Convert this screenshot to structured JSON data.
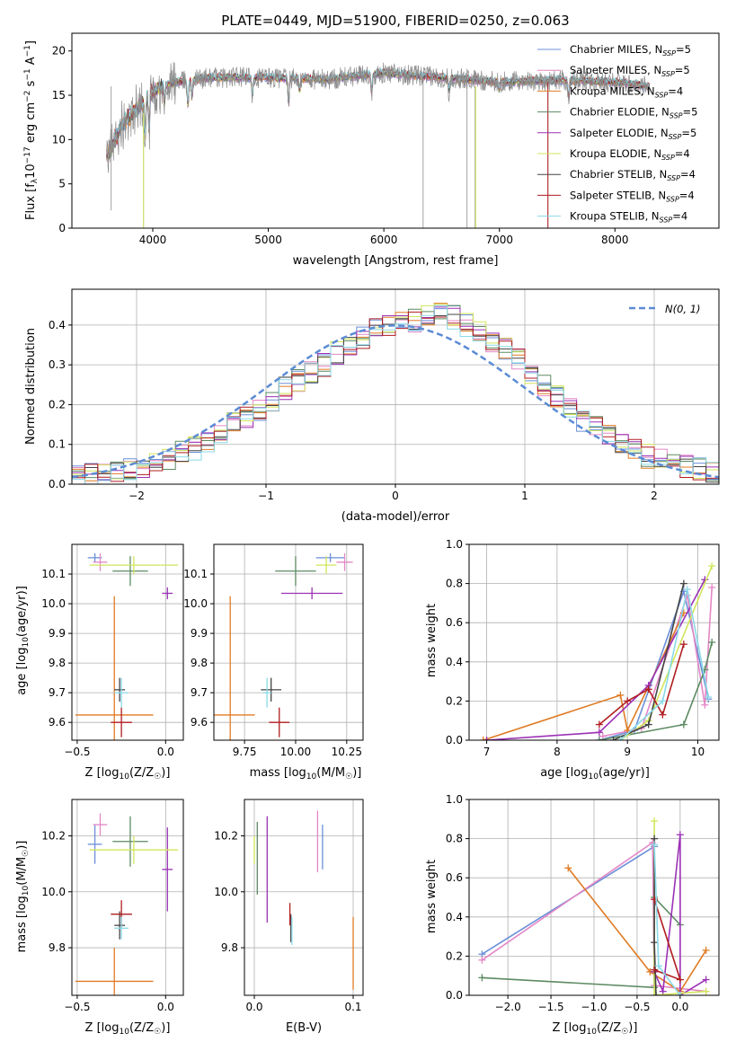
{
  "chart_data": [
    {
      "type": "line",
      "title": "PLATE=0449, MJD=51900, FIBERID=0250, z=0.063",
      "xlabel": "wavelength [Angstrom, rest frame]",
      "ylabel_parts": [
        "Flux [f",
        "λ",
        "10",
        "−17",
        " erg cm",
        "−2",
        " s",
        "−1",
        " A",
        "−1",
        "]"
      ],
      "xlim": [
        3300,
        8900
      ],
      "ylim": [
        0,
        22
      ],
      "xticks": [
        "4000",
        "5000",
        "6000",
        "7000",
        "8000"
      ],
      "yticks": [
        "0",
        "5",
        "10",
        "15",
        "20"
      ],
      "x_range": [
        3600,
        8300
      ],
      "legend_position": "upper right",
      "series": [
        {
          "name": "Chabrier MILES",
          "nssp": "5",
          "color": "#6a8fd8"
        },
        {
          "name": "Salpeter MILES",
          "nssp": "5",
          "color": "#e387c6"
        },
        {
          "name": "Kroupa MILES",
          "nssp": "4",
          "color": "#e07b24"
        },
        {
          "name": "Chabrier ELODIE",
          "nssp": "5",
          "color": "#5c8a62"
        },
        {
          "name": "Salpeter ELODIE",
          "nssp": "5",
          "color": "#9b31b5"
        },
        {
          "name": "Kroupa ELODIE",
          "nssp": "4",
          "color": "#d2e65a"
        },
        {
          "name": "Chabrier STELIB",
          "nssp": "4",
          "color": "#444444"
        },
        {
          "name": "Salpeter STELIB",
          "nssp": "4",
          "color": "#b01c20"
        },
        {
          "name": "Kroupa STELIB",
          "nssp": "4",
          "color": "#8ad9e8"
        }
      ],
      "data_color": "#8c8c8c",
      "continuum": [
        [
          3600,
          8
        ],
        [
          3750,
          12
        ],
        [
          3900,
          14
        ],
        [
          4000,
          15.5
        ],
        [
          4200,
          16.5
        ],
        [
          4500,
          17
        ],
        [
          5000,
          17
        ],
        [
          5500,
          16.8
        ],
        [
          6000,
          17.5
        ],
        [
          6500,
          17
        ],
        [
          7000,
          16.5
        ],
        [
          7500,
          16.7
        ],
        [
          8000,
          16.5
        ],
        [
          8300,
          16
        ]
      ],
      "absorption_lines": [
        [
          3934,
          4
        ],
        [
          3968,
          4
        ],
        [
          4102,
          2
        ],
        [
          4304,
          3
        ],
        [
          4340,
          2
        ],
        [
          4861,
          2
        ],
        [
          5175,
          3
        ],
        [
          5270,
          1.5
        ],
        [
          5893,
          2
        ],
        [
          6563,
          1.5
        ],
        [
          7000,
          1
        ],
        [
          7600,
          2
        ]
      ],
      "telluric_spikes": [
        [
          3640,
          2,
          16
        ],
        [
          3920,
          0,
          14
        ],
        [
          6340,
          0,
          17
        ],
        [
          6720,
          0,
          18
        ],
        [
          6790,
          0,
          16
        ],
        [
          7420,
          0,
          17
        ]
      ]
    },
    {
      "type": "histogram",
      "xlabel": "(data-model)/error",
      "ylabel": "Normed distribution",
      "xlim": [
        -2.5,
        2.5
      ],
      "ylim": [
        0,
        0.49
      ],
      "xticks": [
        "−2",
        "−1",
        "0",
        "1",
        "2"
      ],
      "yticks": [
        "0.0",
        "0.1",
        "0.2",
        "0.3",
        "0.4"
      ],
      "gaussian_label": "N(0, 1)",
      "gaussian_color": "#5b8bd4",
      "bin_edges": [
        -2.5,
        -2.4,
        -2.3,
        -2.2,
        -2.1,
        -2.0,
        -1.9,
        -1.8,
        -1.7,
        -1.6,
        -1.5,
        -1.4,
        -1.3,
        -1.2,
        -1.1,
        -1.0,
        -0.9,
        -0.8,
        -0.7,
        -0.6,
        -0.5,
        -0.4,
        -0.3,
        -0.2,
        -0.1,
        0.0,
        0.1,
        0.2,
        0.3,
        0.4,
        0.5,
        0.6,
        0.7,
        0.8,
        0.9,
        1.0,
        1.1,
        1.2,
        1.3,
        1.4,
        1.5,
        1.6,
        1.7,
        1.8,
        1.9,
        2.0,
        2.1,
        2.2,
        2.3,
        2.4,
        2.5
      ],
      "base_counts": [
        0.02,
        0.025,
        0.03,
        0.035,
        0.04,
        0.045,
        0.055,
        0.065,
        0.08,
        0.09,
        0.11,
        0.13,
        0.15,
        0.17,
        0.19,
        0.21,
        0.24,
        0.26,
        0.28,
        0.3,
        0.33,
        0.35,
        0.37,
        0.39,
        0.4,
        0.41,
        0.41,
        0.42,
        0.43,
        0.42,
        0.4,
        0.38,
        0.36,
        0.34,
        0.31,
        0.28,
        0.25,
        0.22,
        0.19,
        0.16,
        0.14,
        0.12,
        0.1,
        0.085,
        0.07,
        0.06,
        0.05,
        0.045,
        0.04,
        0.035
      ]
    },
    {
      "type": "errorbar",
      "xlabel_parts": [
        "Z [log",
        "10",
        "(Z/Z",
        "☉",
        ")]"
      ],
      "ylabel_parts": [
        "age  [log",
        "10",
        "(age/yr)]"
      ],
      "xlim": [
        -0.53,
        0.1
      ],
      "ylim": [
        9.54,
        10.2
      ],
      "xticks": [
        "−0.5",
        "0.0"
      ],
      "yticks": [
        "9.6",
        "9.7",
        "9.8",
        "9.9",
        "10.0",
        "10.1"
      ],
      "points": [
        {
          "x": -0.4,
          "xerr": 0.04,
          "y": 10.155,
          "yerr": 0.015,
          "color": "#6a8fd8"
        },
        {
          "x": -0.37,
          "xerr": 0.04,
          "y": 10.14,
          "yerr": 0.03,
          "color": "#e387c6"
        },
        {
          "x": -0.29,
          "xerr": 0.22,
          "y": 9.625,
          "yerr": 0.4,
          "color": "#e07b24"
        },
        {
          "x": -0.2,
          "xerr": 0.1,
          "y": 10.11,
          "yerr": 0.05,
          "color": "#5c8a62"
        },
        {
          "x": 0.01,
          "xerr": 0.03,
          "y": 10.035,
          "yerr": 0.02,
          "color": "#9b31b5"
        },
        {
          "x": -0.18,
          "xerr": 0.25,
          "y": 10.13,
          "yerr": 0.03,
          "color": "#d2e65a"
        },
        {
          "x": -0.26,
          "xerr": 0.03,
          "y": 9.71,
          "yerr": 0.04,
          "color": "#444444"
        },
        {
          "x": -0.25,
          "xerr": 0.06,
          "y": 9.6,
          "yerr": 0.05,
          "color": "#b01c20"
        },
        {
          "x": -0.25,
          "xerr": 0.04,
          "y": 9.7,
          "yerr": 0.05,
          "color": "#8ad9e8"
        }
      ]
    },
    {
      "type": "errorbar",
      "xlabel_parts": [
        "mass [log",
        "10",
        "(M/M",
        "☉",
        ")]"
      ],
      "xlim": [
        9.6,
        10.33
      ],
      "ylim": [
        9.54,
        10.2
      ],
      "xticks": [
        "9.75",
        "10.00",
        "10.25"
      ],
      "yticks": [
        "9.6",
        "9.7",
        "9.8",
        "9.9",
        "10.0",
        "10.1"
      ],
      "points": [
        {
          "x": 10.17,
          "xerr": 0.07,
          "y": 10.155,
          "yerr": 0.015,
          "color": "#6a8fd8"
        },
        {
          "x": 10.24,
          "xerr": 0.04,
          "y": 10.14,
          "yerr": 0.03,
          "color": "#e387c6"
        },
        {
          "x": 9.68,
          "xerr": 0.12,
          "y": 9.625,
          "yerr": 0.4,
          "color": "#e07b24"
        },
        {
          "x": 10.0,
          "xerr": 0.1,
          "y": 10.11,
          "yerr": 0.05,
          "color": "#5c8a62"
        },
        {
          "x": 10.08,
          "xerr": 0.15,
          "y": 10.035,
          "yerr": 0.02,
          "color": "#9b31b5"
        },
        {
          "x": 10.15,
          "xerr": 0.05,
          "y": 10.13,
          "yerr": 0.03,
          "color": "#d2e65a"
        },
        {
          "x": 9.88,
          "xerr": 0.05,
          "y": 9.71,
          "yerr": 0.04,
          "color": "#444444"
        },
        {
          "x": 9.92,
          "xerr": 0.05,
          "y": 9.6,
          "yerr": 0.05,
          "color": "#b01c20"
        },
        {
          "x": 9.86,
          "xerr": 0.02,
          "y": 9.7,
          "yerr": 0.05,
          "color": "#8ad9e8"
        }
      ]
    },
    {
      "type": "line",
      "xlabel_parts": [
        "age  [log",
        "10",
        "(age/yr)]"
      ],
      "ylabel": "mass weight",
      "xlim": [
        6.75,
        10.3
      ],
      "ylim": [
        0,
        1
      ],
      "xticks": [
        "7",
        "8",
        "9",
        "10"
      ],
      "yticks": [
        "0.0",
        "0.2",
        "0.4",
        "0.6",
        "0.8",
        "1.0"
      ],
      "series": [
        {
          "color": "#6a8fd8",
          "points": [
            [
              8.6,
              0.0
            ],
            [
              9.1,
              0.05
            ],
            [
              9.8,
              0.76
            ],
            [
              10.15,
              0.21
            ]
          ]
        },
        {
          "color": "#e387c6",
          "points": [
            [
              8.65,
              0.02
            ],
            [
              9.2,
              0.06
            ],
            [
              9.85,
              0.74
            ],
            [
              10.1,
              0.18
            ],
            [
              10.2,
              0.78
            ]
          ]
        },
        {
          "color": "#e07b24",
          "points": [
            [
              6.95,
              0.0
            ],
            [
              8.9,
              0.23
            ],
            [
              9.0,
              0.05
            ],
            [
              9.8,
              0.65
            ]
          ]
        },
        {
          "color": "#5c8a62",
          "points": [
            [
              8.6,
              0.0
            ],
            [
              9.8,
              0.08
            ],
            [
              10.1,
              0.36
            ],
            [
              10.2,
              0.5
            ]
          ]
        },
        {
          "color": "#9b31b5",
          "points": [
            [
              7.0,
              0.0
            ],
            [
              8.6,
              0.04
            ],
            [
              9.3,
              0.28
            ],
            [
              10.1,
              0.82
            ]
          ]
        },
        {
          "color": "#d2e65a",
          "points": [
            [
              8.9,
              0.0
            ],
            [
              9.3,
              0.1
            ],
            [
              10.2,
              0.89
            ]
          ]
        },
        {
          "color": "#444444",
          "points": [
            [
              8.8,
              0.0
            ],
            [
              9.3,
              0.08
            ],
            [
              9.8,
              0.8
            ]
          ]
        },
        {
          "color": "#b01c20",
          "points": [
            [
              8.6,
              0.08
            ],
            [
              9.0,
              0.2
            ],
            [
              9.3,
              0.26
            ],
            [
              9.5,
              0.13
            ],
            [
              9.8,
              0.49
            ]
          ]
        },
        {
          "color": "#8ad9e8",
          "points": [
            [
              8.9,
              0.0
            ],
            [
              9.5,
              0.2
            ],
            [
              9.85,
              0.77
            ],
            [
              10.15,
              0.22
            ]
          ]
        }
      ]
    },
    {
      "type": "errorbar",
      "xlabel_parts": [
        "Z [log",
        "10",
        "(Z/Z",
        "☉",
        ")]"
      ],
      "ylabel_parts": [
        "mass [log",
        "10",
        "(M/M",
        "☉",
        ")]"
      ],
      "xlim": [
        -0.53,
        0.1
      ],
      "ylim": [
        9.63,
        10.33
      ],
      "xticks": [
        "−0.5",
        "0.0"
      ],
      "yticks": [
        "9.8",
        "10.0",
        "10.2"
      ],
      "points": [
        {
          "x": -0.4,
          "xerr": 0.04,
          "y": 10.17,
          "yerr": 0.07,
          "color": "#6a8fd8"
        },
        {
          "x": -0.37,
          "xerr": 0.04,
          "y": 10.24,
          "yerr": 0.04,
          "color": "#e387c6"
        },
        {
          "x": -0.29,
          "xerr": 0.22,
          "y": 9.68,
          "yerr": 0.12,
          "color": "#e07b24"
        },
        {
          "x": -0.2,
          "xerr": 0.1,
          "y": 10.18,
          "yerr": 0.09,
          "color": "#5c8a62"
        },
        {
          "x": 0.01,
          "xerr": 0.03,
          "y": 10.08,
          "yerr": 0.15,
          "color": "#9b31b5"
        },
        {
          "x": -0.18,
          "xerr": 0.25,
          "y": 10.15,
          "yerr": 0.05,
          "color": "#d2e65a"
        },
        {
          "x": -0.26,
          "xerr": 0.03,
          "y": 9.88,
          "yerr": 0.05,
          "color": "#444444"
        },
        {
          "x": -0.25,
          "xerr": 0.06,
          "y": 9.92,
          "yerr": 0.05,
          "color": "#b01c20"
        },
        {
          "x": -0.25,
          "xerr": 0.04,
          "y": 9.87,
          "yerr": 0.04,
          "color": "#8ad9e8"
        }
      ]
    },
    {
      "type": "errorbar",
      "xlabel": "E(B-V)",
      "xlim": [
        -0.01,
        0.11
      ],
      "ylim": [
        9.63,
        10.33
      ],
      "xticks": [
        "0.0",
        "0.1"
      ],
      "yticks": [
        "9.8",
        "10.0",
        "10.2"
      ],
      "points": [
        {
          "x": 0.069,
          "y": 10.16,
          "yerr": 0.08,
          "color": "#6a8fd8"
        },
        {
          "x": 0.064,
          "y": 10.18,
          "yerr": 0.11,
          "color": "#e387c6"
        },
        {
          "x": 0.1,
          "y": 9.78,
          "yerr": 0.13,
          "color": "#e07b24"
        },
        {
          "x": 0.003,
          "y": 10.12,
          "yerr": 0.13,
          "color": "#5c8a62"
        },
        {
          "x": 0.013,
          "y": 10.08,
          "yerr": 0.19,
          "color": "#9b31b5"
        },
        {
          "x": 0.0,
          "y": 10.15,
          "yerr": 0.05,
          "color": "#d2e65a"
        },
        {
          "x": 0.037,
          "y": 9.87,
          "yerr": 0.05,
          "color": "#444444"
        },
        {
          "x": 0.036,
          "y": 9.92,
          "yerr": 0.04,
          "color": "#b01c20"
        },
        {
          "x": 0.038,
          "y": 9.86,
          "yerr": 0.05,
          "color": "#8ad9e8"
        }
      ]
    },
    {
      "type": "line",
      "xlabel_parts": [
        "Z [log",
        "10",
        "(Z/Z",
        "☉",
        ")]"
      ],
      "ylabel": "mass weight",
      "xlim": [
        -2.45,
        0.45
      ],
      "ylim": [
        0,
        1
      ],
      "xticks": [
        "−2.0",
        "−1.5",
        "−1.0",
        "−0.5",
        "0.0"
      ],
      "yticks": [
        "0.0",
        "0.2",
        "0.4",
        "0.6",
        "0.8",
        "1.0"
      ],
      "series": [
        {
          "color": "#6a8fd8",
          "points": [
            [
              -2.3,
              0.21
            ],
            [
              -0.3,
              0.76
            ]
          ]
        },
        {
          "color": "#e387c6",
          "points": [
            [
              -2.3,
              0.18
            ],
            [
              -0.32,
              0.78
            ],
            [
              -0.3,
              0.05
            ],
            [
              0.3,
              0.02
            ]
          ]
        },
        {
          "color": "#e07b24",
          "points": [
            [
              -1.3,
              0.65
            ],
            [
              -0.35,
              0.12
            ],
            [
              0.0,
              0.02
            ],
            [
              0.3,
              0.23
            ]
          ]
        },
        {
          "color": "#5c8a62",
          "points": [
            [
              -2.3,
              0.09
            ],
            [
              -0.3,
              0.04
            ],
            [
              -0.3,
              0.5
            ],
            [
              0.0,
              0.36
            ]
          ]
        },
        {
          "color": "#9b31b5",
          "points": [
            [
              -0.3,
              0.12
            ],
            [
              -0.2,
              0.02
            ],
            [
              0.0,
              0.82
            ],
            [
              0.0,
              0.0
            ],
            [
              0.3,
              0.08
            ]
          ]
        },
        {
          "color": "#d2e65a",
          "points": [
            [
              -0.3,
              0.89
            ],
            [
              -0.3,
              0.0
            ],
            [
              0.3,
              0.02
            ]
          ]
        },
        {
          "color": "#444444",
          "points": [
            [
              -0.3,
              0.8
            ],
            [
              -0.3,
              0.27
            ],
            [
              -0.28,
              0.0
            ]
          ]
        },
        {
          "color": "#b01c20",
          "points": [
            [
              -0.3,
              0.13
            ],
            [
              0.0,
              0.08
            ],
            [
              -0.3,
              0.49
            ]
          ]
        },
        {
          "color": "#8ad9e8",
          "points": [
            [
              -0.3,
              0.77
            ],
            [
              -0.25,
              0.15
            ],
            [
              0.0,
              0.0
            ]
          ]
        }
      ]
    }
  ]
}
